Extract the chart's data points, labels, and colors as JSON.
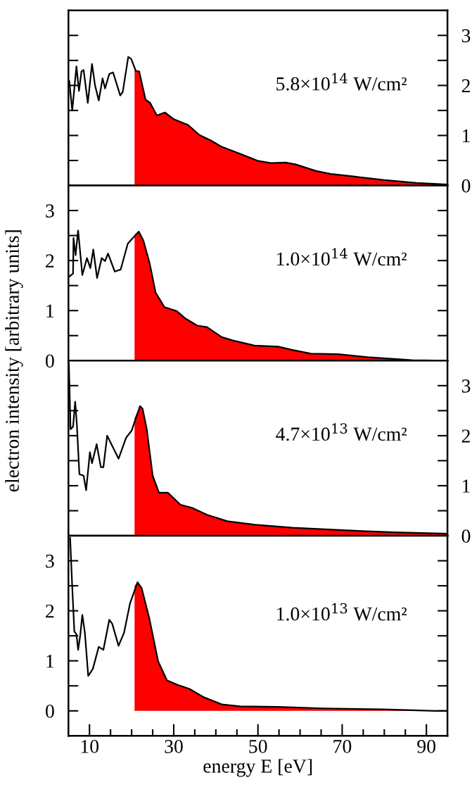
{
  "chart_data": [
    {
      "type": "line",
      "xlim": [
        5,
        95
      ],
      "y2lim": [
        0,
        3.5
      ],
      "y2ticks": [
        0,
        {
          "value": 0.5,
          "label": null
        },
        1,
        {
          "value": 1.5,
          "label": null
        },
        2,
        {
          "value": 2.5,
          "label": null
        },
        3
      ],
      "tick_labels": "y",
      "annotations": [
        "5.8×10$^{14}$ W/cm²"
      ],
      "series": [
        {
          "type": "area",
          "axis": "y2",
          "color": "#ff0000",
          "x": [
            20.7,
            21.0,
            21.8,
            23.3,
            24.4,
            26.0,
            27.9,
            29.9,
            33.4,
            36.1,
            38.8,
            41.2,
            45.9,
            50.1,
            53.1,
            56.6,
            59.0,
            63.8,
            67.3,
            72.7,
            79.8,
            87.6,
            95
          ],
          "values": [
            2.35,
            2.29,
            2.28,
            1.72,
            1.65,
            1.4,
            1.46,
            1.33,
            1.21,
            1.01,
            0.9,
            0.78,
            0.63,
            0.49,
            0.45,
            0.46,
            0.42,
            0.29,
            0.23,
            0.18,
            0.11,
            0.05,
            0.02
          ]
        },
        {
          "axis": "y2",
          "color": "#000000",
          "x": [
            5.2,
            5.9,
            6.9,
            7.5,
            8.1,
            8.6,
            9.6,
            10.6,
            11.3,
            12.2,
            13.1,
            13.7,
            14.7,
            15.6,
            17.3,
            17.9,
            19.2,
            19.9,
            21.0,
            21.8,
            23.3,
            24.4,
            26.0,
            27.9,
            29.9,
            33.4,
            36.1,
            38.8,
            41.2,
            45.9,
            50.1,
            53.1,
            56.6,
            59.0,
            63.8,
            67.3,
            72.7,
            79.8,
            87.6,
            95
          ],
          "values": [
            2.09,
            1.5,
            2.38,
            1.89,
            2.28,
            2.31,
            1.65,
            2.43,
            2.01,
            1.7,
            2.14,
            1.94,
            2.23,
            2.26,
            1.8,
            1.87,
            2.57,
            2.53,
            2.29,
            2.28,
            1.72,
            1.65,
            1.4,
            1.46,
            1.33,
            1.21,
            1.01,
            0.9,
            0.78,
            0.63,
            0.49,
            0.45,
            0.46,
            0.42,
            0.29,
            0.23,
            0.18,
            0.11,
            0.05,
            0.02
          ]
        }
      ]
    },
    {
      "type": "line",
      "xlim": [
        5,
        95
      ],
      "ylim": [
        0,
        3.5
      ],
      "yticks": [
        0,
        {
          "value": 0.5,
          "label": null
        },
        1,
        {
          "value": 1.5,
          "label": null
        },
        2,
        {
          "value": 2.5,
          "label": null
        },
        3
      ],
      "tick_labels": "y",
      "ylabel": "electron intensity [arbitrary units]",
      "annotations": [
        "1.0×10$^{14}$ W/cm²"
      ],
      "series": [
        {
          "type": "area",
          "color": "#ff0000",
          "x": [
            20.7,
            21.7,
            22.8,
            24.3,
            25.7,
            27.8,
            30.7,
            32.8,
            35.6,
            37.9,
            41.4,
            44.2,
            49.2,
            54.8,
            58.4,
            62.6,
            69.0,
            76.0,
            86.6,
            95
          ],
          "values": [
            2.52,
            2.58,
            2.4,
            1.94,
            1.36,
            1.07,
            0.99,
            0.84,
            0.7,
            0.67,
            0.47,
            0.4,
            0.3,
            0.28,
            0.21,
            0.14,
            0.13,
            0.07,
            0.01,
            0.0
          ]
        },
        {
          "color": "#000000",
          "x": [
            5.2,
            6.1,
            6.2,
            6.7,
            7.3,
            8.3,
            9.4,
            10.2,
            10.9,
            11.8,
            12.9,
            13.7,
            14.4,
            16.0,
            17.4,
            19.1,
            21.7,
            22.8,
            24.3,
            25.7,
            27.8,
            30.7,
            32.8,
            35.6,
            37.9,
            41.4,
            44.2,
            49.2,
            54.8,
            58.4,
            62.6,
            69.0,
            76.0,
            86.6,
            95
          ],
          "values": [
            1.68,
            1.74,
            2.45,
            2.11,
            2.6,
            1.71,
            2.05,
            1.85,
            2.22,
            1.65,
            2.05,
            1.99,
            2.14,
            1.78,
            1.82,
            2.34,
            2.58,
            2.4,
            1.94,
            1.36,
            1.07,
            0.99,
            0.84,
            0.7,
            0.67,
            0.47,
            0.4,
            0.3,
            0.28,
            0.21,
            0.14,
            0.13,
            0.07,
            0.01,
            0.0
          ]
        }
      ]
    },
    {
      "type": "line",
      "xlim": [
        5,
        95
      ],
      "y2lim": [
        0,
        3.5
      ],
      "y2ticks": [
        0,
        {
          "value": 0.5,
          "label": null
        },
        1,
        {
          "value": 1.5,
          "label": null
        },
        2,
        {
          "value": 2.5,
          "label": null
        },
        3
      ],
      "tick_labels": "y",
      "annotations": [
        "4.7×10$^{13}$ W/cm²"
      ],
      "series": [
        {
          "type": "area",
          "axis": "y2",
          "color": "#ff0000",
          "x": [
            20.7,
            22.0,
            22.6,
            23.6,
            25.0,
            26.5,
            28.6,
            31.6,
            34.3,
            37.9,
            42.7,
            49.3,
            58.2,
            70.2,
            82.2,
            95
          ],
          "values": [
            2.35,
            2.59,
            2.54,
            2.13,
            1.2,
            0.86,
            0.86,
            0.62,
            0.56,
            0.42,
            0.29,
            0.22,
            0.16,
            0.11,
            0.07,
            0.04
          ]
        },
        {
          "axis": "y2",
          "color": "#000000",
          "x": [
            5.1,
            5.5,
            6.1,
            6.6,
            7.0,
            7.6,
            8.6,
            9.2,
            10.1,
            10.6,
            11.7,
            12.7,
            13.3,
            14.2,
            16.9,
            18.7,
            20.0,
            22.0,
            22.6,
            23.6,
            25.0,
            26.5,
            28.6,
            31.6,
            34.3,
            37.9,
            42.7,
            49.3,
            58.2,
            70.2,
            82.2,
            95
          ],
          "values": [
            3.45,
            2.13,
            2.18,
            2.68,
            2.22,
            1.23,
            1.2,
            0.91,
            1.67,
            1.45,
            1.83,
            1.37,
            1.37,
            2.0,
            1.54,
            1.96,
            2.1,
            2.59,
            2.54,
            2.13,
            1.2,
            0.86,
            0.86,
            0.62,
            0.56,
            0.42,
            0.29,
            0.22,
            0.16,
            0.11,
            0.07,
            0.04
          ]
        }
      ]
    },
    {
      "type": "line",
      "xlim": [
        5,
        95
      ],
      "ylim": [
        -0.5,
        3.5
      ],
      "xticks": [
        10,
        {
          "value": 15,
          "label": null
        },
        {
          "value": 20,
          "label": null
        },
        {
          "value": 25,
          "label": null
        },
        30,
        {
          "value": 35,
          "label": null
        },
        {
          "value": 40,
          "label": null
        },
        {
          "value": 45,
          "label": null
        },
        50,
        {
          "value": 55,
          "label": null
        },
        {
          "value": 60,
          "label": null
        },
        {
          "value": 65,
          "label": null
        },
        70,
        {
          "value": 75,
          "label": null
        },
        {
          "value": 80,
          "label": null
        },
        {
          "value": 85,
          "label": null
        },
        90
      ],
      "yticks": [
        0,
        {
          "value": 0.5,
          "label": null
        },
        1,
        {
          "value": 1.5,
          "label": null
        },
        2,
        {
          "value": 2.5,
          "label": null
        },
        3
      ],
      "xlabel": "energy E [eV]",
      "annotations": [
        "1.0×10$^{13}$ W/cm²"
      ],
      "series": [
        {
          "type": "area",
          "color": "#ff0000",
          "x": [
            20.7,
            21.4,
            22.4,
            24.2,
            26.3,
            28.4,
            30.9,
            33.7,
            37.2,
            41.4,
            45.7,
            54.8,
            65.4,
            79.5,
            92.2,
            95
          ],
          "values": [
            2.5,
            2.57,
            2.45,
            1.85,
            0.99,
            0.61,
            0.52,
            0.44,
            0.27,
            0.13,
            0.09,
            0.08,
            0.05,
            0.03,
            0.0,
            0.0
          ]
        },
        {
          "color": "#000000",
          "x": [
            5.4,
            5.9,
            6.4,
            6.9,
            7.3,
            7.8,
            8.3,
            8.9,
            9.7,
            10.8,
            12.2,
            13.3,
            14.7,
            15.4,
            16.9,
            18.2,
            19.6,
            21.4,
            22.4,
            24.2,
            26.3,
            28.4,
            30.9,
            33.7,
            37.2,
            41.4,
            45.7,
            54.8,
            65.4,
            79.5,
            92.2,
            95
          ],
          "values": [
            3.46,
            2.48,
            1.59,
            1.53,
            1.22,
            1.51,
            1.92,
            1.56,
            0.7,
            0.84,
            1.28,
            1.22,
            1.82,
            1.74,
            1.3,
            1.56,
            2.14,
            2.57,
            2.45,
            1.85,
            0.99,
            0.61,
            0.52,
            0.44,
            0.27,
            0.13,
            0.09,
            0.08,
            0.05,
            0.03,
            0.0,
            0.0
          ]
        }
      ]
    }
  ]
}
